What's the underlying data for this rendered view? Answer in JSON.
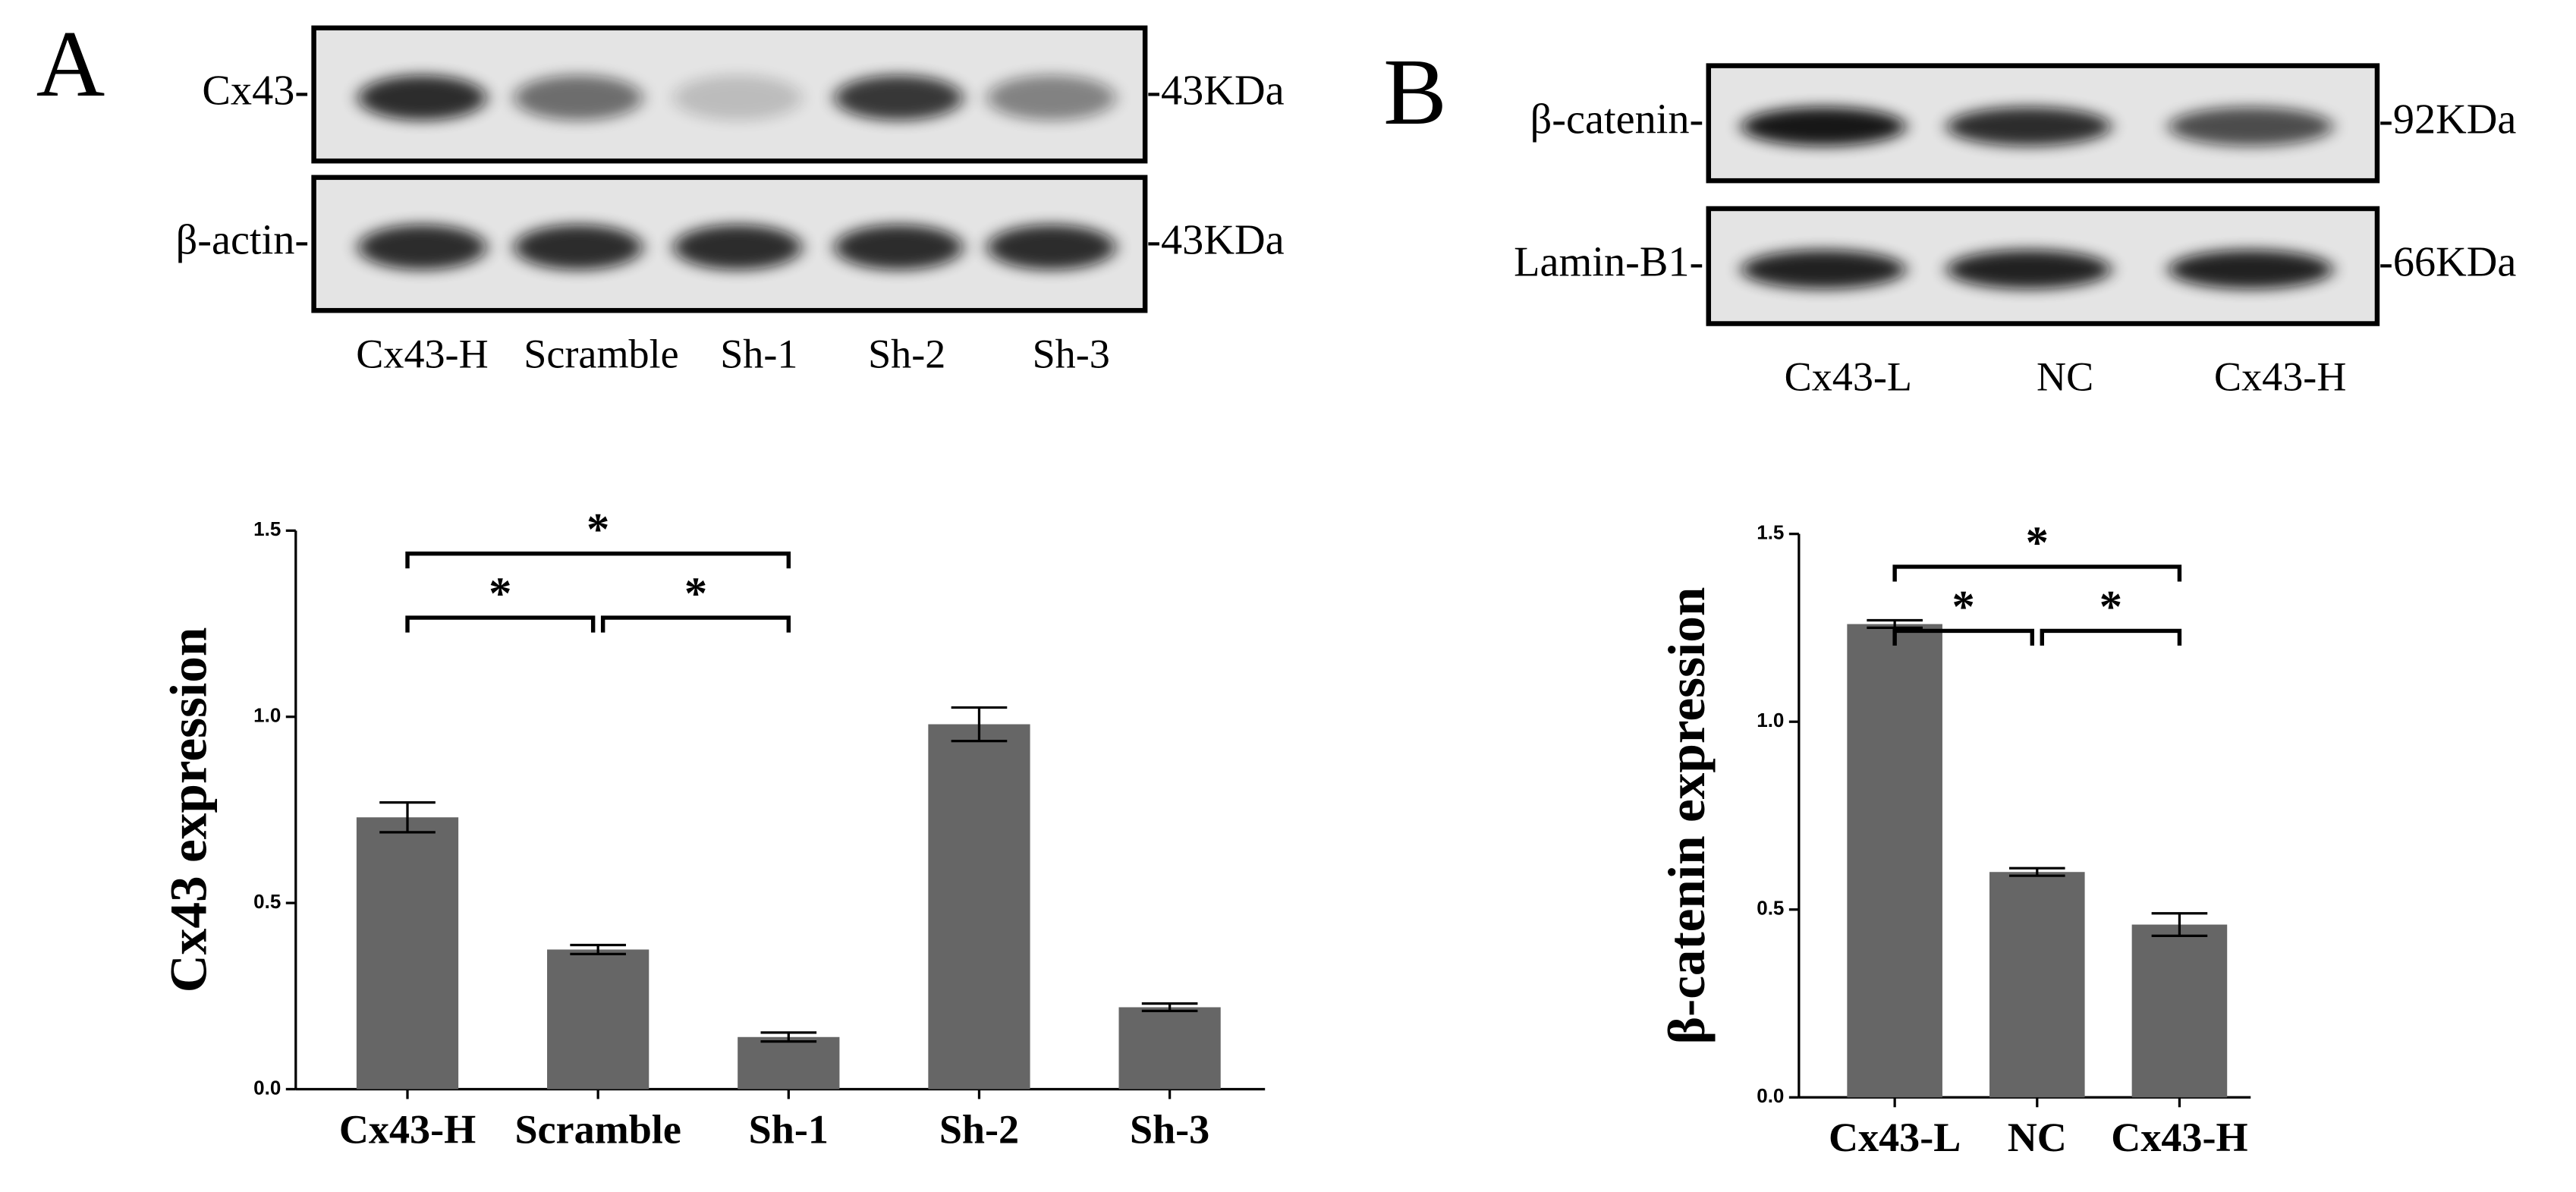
{
  "blots": [
    {
      "panel": "A",
      "rows": [
        {
          "label": "Cx43-",
          "size": "-43KDa"
        },
        {
          "label": "β-actin-",
          "size": "-43KDa"
        }
      ],
      "lanes": [
        "Cx43-H",
        "Scramble",
        "Sh-1",
        "Sh-2",
        "Sh-3"
      ]
    },
    {
      "panel": "B",
      "rows": [
        {
          "label": "β-catenin-",
          "size": "-92KDa"
        },
        {
          "label": "Lamin-B1-",
          "size": "-66KDa"
        }
      ],
      "lanes": [
        "Cx43-L",
        "NC",
        "Cx43-H"
      ]
    }
  ],
  "chart_data": [
    {
      "type": "bar",
      "ylabel": "Cx43 expression",
      "categories": [
        "Cx43-H",
        "Scramble",
        "Sh-1",
        "Sh-2",
        "Sh-3"
      ],
      "values": [
        0.73,
        0.375,
        0.14,
        0.98,
        0.22
      ],
      "errors": [
        0.04,
        0.012,
        0.012,
        0.045,
        0.01
      ],
      "color": "#666666",
      "ylim": [
        0,
        1.5
      ],
      "yticks": [
        {
          "value": 0,
          "label": "0.0"
        },
        0.5,
        {
          "value": 1,
          "label": "1.0"
        },
        1.5
      ],
      "annotations": [
        {
          "label": "*",
          "from": 0,
          "to": 1
        },
        {
          "label": "*",
          "from": 1,
          "to": 2
        },
        {
          "label": "*",
          "from": 0,
          "to": 2
        }
      ]
    },
    {
      "type": "bar",
      "ylabel": "β-catenin expression",
      "categories": [
        "Cx43-L",
        "NC",
        "Cx43-H"
      ],
      "values": [
        1.26,
        0.6,
        0.46
      ],
      "errors": [
        0.01,
        0.01,
        0.03
      ],
      "color": "#666666",
      "ylim": [
        0,
        1.5
      ],
      "yticks": [
        {
          "value": 0,
          "label": "0.0"
        },
        0.5,
        {
          "value": 1,
          "label": "1.0"
        },
        1.5
      ],
      "annotations": [
        {
          "label": "*",
          "from": 0,
          "to": 1
        },
        {
          "label": "*",
          "from": 1,
          "to": 2
        },
        {
          "label": "*",
          "from": 0,
          "to": 2
        }
      ]
    }
  ]
}
